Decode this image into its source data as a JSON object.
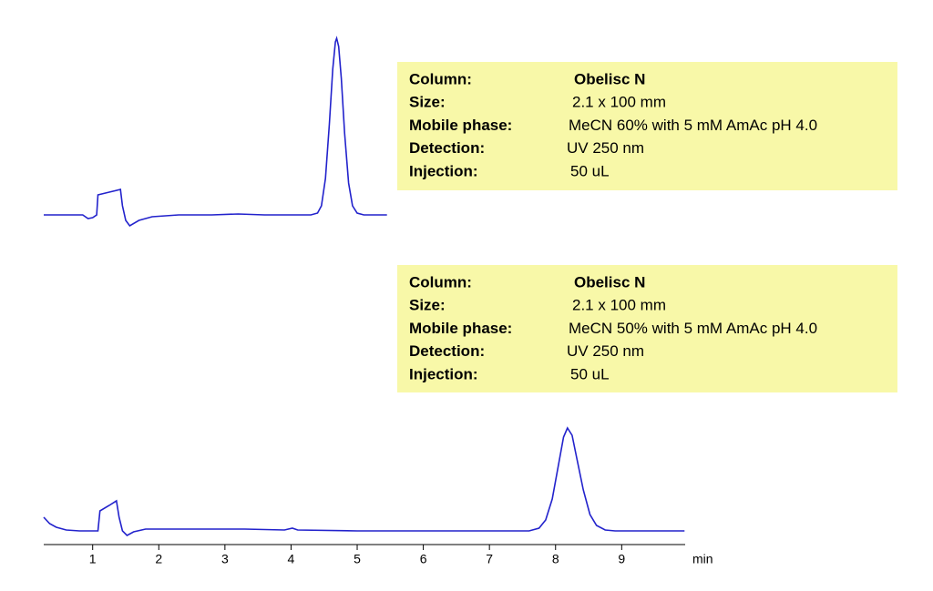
{
  "chart_data": [
    {
      "type": "line",
      "info": [
        {
          "label": "Column:",
          "value": "Obelisc N"
        },
        {
          "label": "Size:",
          "value": "2.1 x 100 mm"
        },
        {
          "label": "Mobile phase:",
          "value": "MeCN 60% with 5 mM AmAc pH 4.0"
        },
        {
          "label": "Detection:",
          "value": "UV 250 nm"
        },
        {
          "label": "Injection:",
          "value": "50 uL"
        }
      ],
      "x": [
        0.26,
        0.85,
        0.93,
        1.0,
        1.06,
        1.08,
        1.25,
        1.42,
        1.45,
        1.5,
        1.56,
        1.7,
        1.9,
        2.3,
        2.8,
        3.2,
        3.6,
        4.3,
        4.4,
        4.46,
        4.52,
        4.58,
        4.63,
        4.67,
        4.69,
        4.72,
        4.76,
        4.81,
        4.87,
        4.93,
        5.0,
        5.1,
        5.45
      ],
      "series": [
        {
          "color": "#2222cc",
          "values": [
            0,
            0,
            -4,
            -3,
            0,
            22,
            25,
            28,
            10,
            -6,
            -12,
            -6,
            -2,
            0,
            0,
            1,
            0,
            0,
            2,
            10,
            40,
            100,
            160,
            190,
            194,
            185,
            150,
            90,
            35,
            10,
            2,
            0,
            0
          ]
        }
      ],
      "xlim": [
        0.26,
        9.96
      ],
      "ylim": [
        -20,
        200
      ]
    },
    {
      "type": "line",
      "info": [
        {
          "label": "Column:",
          "value": "Obelisc N"
        },
        {
          "label": "Size:",
          "value": "2.1 x 100 mm"
        },
        {
          "label": "Mobile phase:",
          "value": "MeCN 50% with 5 mM AmAc pH 4.0"
        },
        {
          "label": "Detection:",
          "value": "UV 250 nm"
        },
        {
          "label": "Injection:",
          "value": "50 uL"
        }
      ],
      "x": [
        0.26,
        0.35,
        0.45,
        0.6,
        0.8,
        1.08,
        1.11,
        1.25,
        1.36,
        1.4,
        1.45,
        1.52,
        1.62,
        1.8,
        2.5,
        3.3,
        3.9,
        4.02,
        4.1,
        5,
        6,
        7,
        7.6,
        7.75,
        7.85,
        7.95,
        8.05,
        8.12,
        8.18,
        8.25,
        8.32,
        8.42,
        8.52,
        8.62,
        8.75,
        8.9,
        9.95
      ],
      "series": [
        {
          "color": "#2222cc",
          "values": [
            15,
            8,
            4,
            1,
            0,
            0,
            22,
            28,
            33,
            15,
            0,
            -5,
            -1,
            2,
            2,
            2,
            1,
            3,
            1,
            0,
            0,
            0,
            0,
            3,
            12,
            35,
            75,
            103,
            113,
            105,
            80,
            45,
            18,
            6,
            1,
            0,
            0
          ]
        }
      ],
      "xlim": [
        0.26,
        9.96
      ],
      "ylim": [
        -20,
        200
      ],
      "xticks": [
        1,
        2,
        3,
        4,
        5,
        6,
        7,
        8,
        9
      ],
      "xlabel": "min"
    }
  ]
}
